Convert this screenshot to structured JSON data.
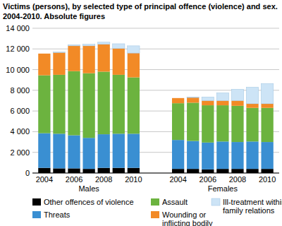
{
  "chart_data": {
    "type": "bar",
    "stacked": true,
    "title": "Victims (persons), by selected type of principal offence (violence) and sex. 2004-2010. Absolute figures",
    "groups": [
      "Males",
      "Females"
    ],
    "categories": [
      "2004",
      null,
      "2006",
      null,
      "2008",
      null,
      "2010",
      "2004",
      null,
      "2006",
      null,
      "2008",
      null,
      "2010"
    ],
    "series": [
      {
        "name": "Other offences of violence",
        "color": "#000000",
        "values": [
          500,
          450,
          450,
          400,
          500,
          500,
          500,
          400,
          400,
          350,
          400,
          400,
          400,
          400
        ]
      },
      {
        "name": "Threats",
        "color": "#3a8fd2",
        "values": [
          3350,
          3350,
          3200,
          3000,
          3250,
          3300,
          3300,
          2800,
          2700,
          2600,
          2650,
          2600,
          2650,
          2600
        ]
      },
      {
        "name": "Assault",
        "color": "#6cb33f",
        "values": [
          5600,
          5700,
          6200,
          6250,
          6050,
          5700,
          5450,
          3550,
          3700,
          3600,
          3500,
          3500,
          3250,
          3300
        ]
      },
      {
        "name": "Wounding or inflicting bodily harm",
        "color": "#f28a26",
        "values": [
          2100,
          2150,
          2450,
          2650,
          2650,
          2550,
          2350,
          500,
          500,
          450,
          450,
          500,
          400,
          400
        ]
      },
      {
        "name": "Ill-treatment within family relations",
        "color": "#cde4f6",
        "values": [
          0,
          50,
          100,
          150,
          200,
          450,
          700,
          0,
          50,
          350,
          750,
          1100,
          1600,
          1950
        ]
      }
    ],
    "ylim": [
      0,
      14000
    ],
    "yticks": [
      0,
      {
        "value": 2000,
        "label": "2 000"
      },
      {
        "value": 4000,
        "label": "4 000"
      },
      {
        "value": 6000,
        "label": "6 000"
      },
      {
        "value": 8000,
        "label": "8 000"
      },
      {
        "value": 10000,
        "label": "10 000"
      },
      {
        "value": 12000,
        "label": "12 000"
      },
      {
        "value": 14000,
        "label": "14 000"
      }
    ],
    "grid": true
  }
}
